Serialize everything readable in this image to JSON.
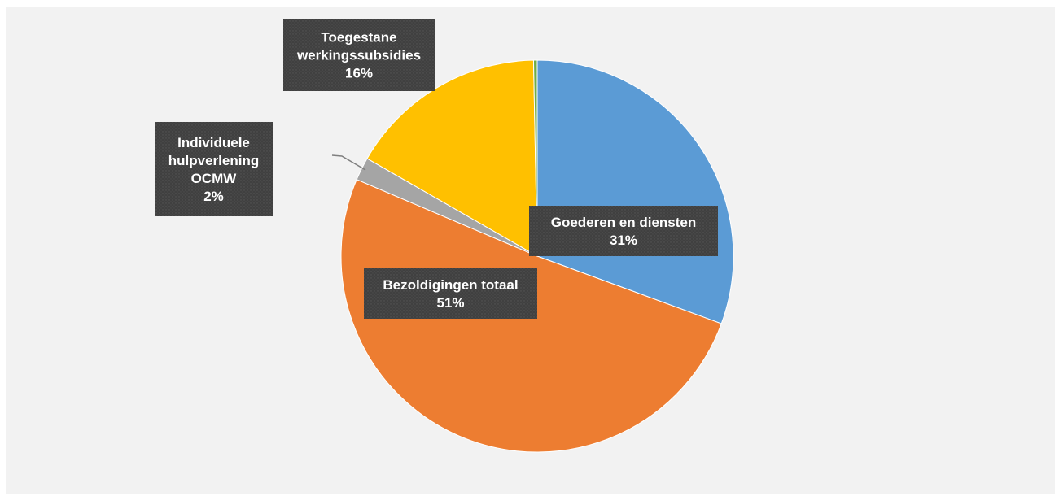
{
  "chart_data": {
    "type": "pie",
    "title": "",
    "start_angle_deg": 0,
    "direction": "clockwise",
    "slices": [
      {
        "label_lines": [
          "Goederen en diensten",
          "31%"
        ],
        "value": 30.6,
        "color": "#5b9bd5"
      },
      {
        "label_lines": [
          "Bezoldigingen totaal",
          "51%"
        ],
        "value": 50.8,
        "color": "#ed7d31"
      },
      {
        "label_lines": [
          "Individuele",
          "hulpverlening",
          "OCMW",
          "2%"
        ],
        "value": 1.9,
        "color": "#a5a5a5"
      },
      {
        "label_lines": [
          "Toegestane",
          "werkingssubsidies",
          "16%"
        ],
        "value": 16.4,
        "color": "#ffc000"
      },
      {
        "value": 0.3,
        "color": "#70ad47"
      }
    ],
    "label_box_color": "#404040",
    "label_text_color": "#ffffff",
    "background_color": "#f2f2f2"
  }
}
